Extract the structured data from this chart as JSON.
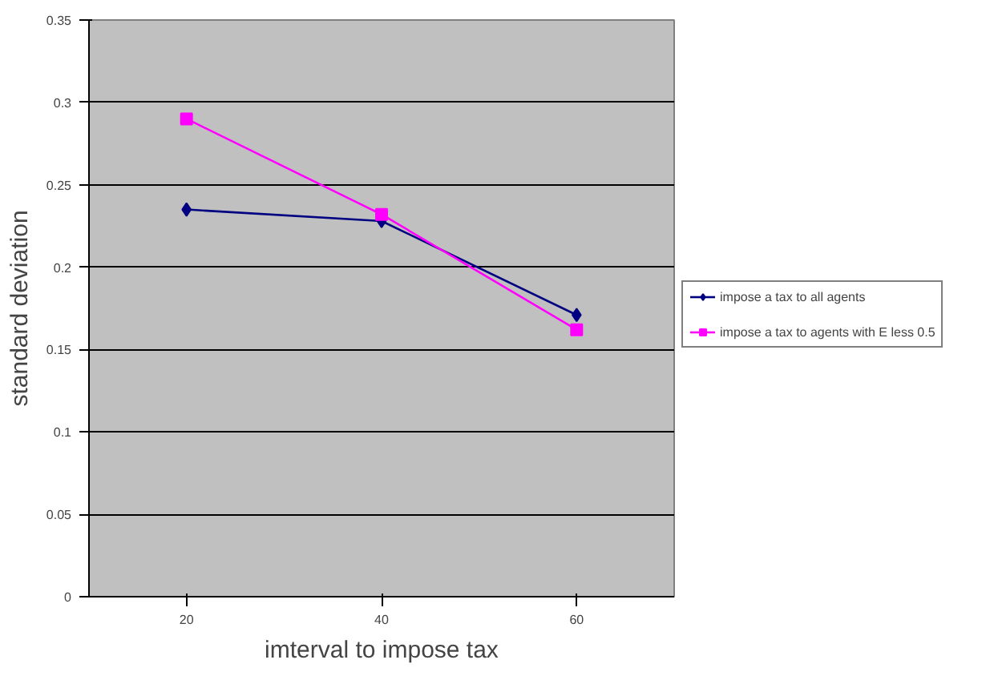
{
  "chart_data": {
    "type": "line",
    "xlabel": "imterval to impose tax",
    "ylabel": "standard deviation",
    "categories": [
      "20",
      "40",
      "60"
    ],
    "series": [
      {
        "name": "impose a tax to all agents",
        "color": "#000080",
        "marker": "diamond",
        "values": [
          0.235,
          0.228,
          0.171
        ]
      },
      {
        "name": "impose a tax to agents with E less 0.5",
        "color": "#ff00ff",
        "marker": "square",
        "values": [
          0.29,
          0.232,
          0.162
        ]
      }
    ],
    "ylim": [
      0,
      0.35
    ],
    "yticks": [
      0,
      0.05,
      0.1,
      0.15,
      0.2,
      0.25,
      0.3,
      0.35
    ],
    "grid": "y",
    "legend": "right"
  }
}
